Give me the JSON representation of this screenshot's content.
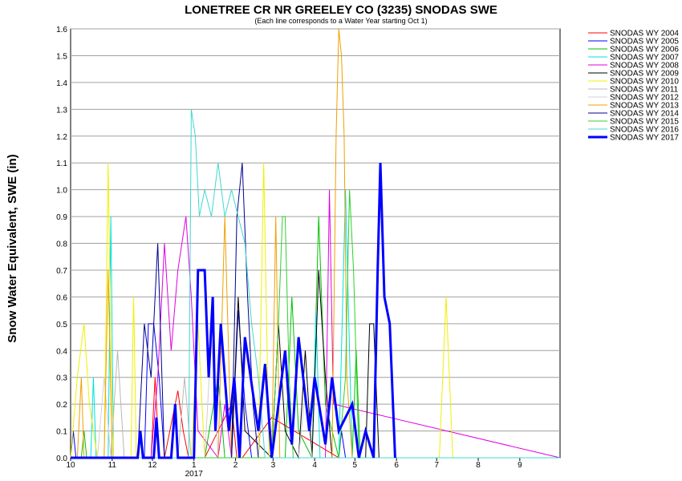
{
  "chart_data": {
    "type": "line",
    "title": "LONETREE CR NR GREELEY CO (3235) SNODAS SWE",
    "subtitle": "(Each line corresponds to a Water Year starting Oct 1)",
    "y_label": "Snow Water Equivalent, SWE (in)",
    "x_year_label": "2017",
    "xlim": [
      0,
      365
    ],
    "xticks": [
      {
        "value": 0,
        "label": "10"
      },
      {
        "value": 31,
        "label": "11"
      },
      {
        "value": 61,
        "label": "12"
      },
      {
        "value": 92,
        "label": "1"
      },
      {
        "value": 123,
        "label": "2"
      },
      {
        "value": 151,
        "label": "3"
      },
      {
        "value": 182,
        "label": "4"
      },
      {
        "value": 212,
        "label": "5"
      },
      {
        "value": 243,
        "label": "6"
      },
      {
        "value": 273,
        "label": "7"
      },
      {
        "value": 304,
        "label": "8"
      },
      {
        "value": 335,
        "label": "9"
      }
    ],
    "ylim": [
      0,
      1.6
    ],
    "yticks": [
      {
        "value": 0,
        "label": "0.0"
      },
      0.1,
      0.2,
      0.3,
      0.4,
      0.5,
      0.6,
      0.7,
      0.8,
      0.9,
      {
        "value": 1,
        "label": "1.0"
      },
      1.1,
      1.2,
      1.3,
      1.4,
      1.5,
      1.6
    ],
    "grid": true,
    "legend": "right",
    "series": [
      {
        "name": "SNODAS WY 2004",
        "color": "#ff0000",
        "width": 1,
        "x": [
          0,
          60,
          63,
          66,
          70,
          80,
          84,
          88,
          100,
          120,
          124,
          128,
          150,
          200,
          365
        ],
        "values": [
          0,
          0,
          0.3,
          0,
          0,
          0.25,
          0.1,
          0,
          0,
          0.2,
          0,
          0,
          0.15,
          0,
          0
        ]
      },
      {
        "name": "SNODAS WY 2005",
        "color": "#0000ff",
        "width": 1,
        "x": [
          0,
          2,
          4,
          6,
          55,
          58,
          62,
          66,
          70,
          120,
          125,
          130,
          135,
          200,
          202,
          205,
          365
        ],
        "values": [
          0,
          0.1,
          0,
          0,
          0,
          0.5,
          0.5,
          0.3,
          0,
          0,
          0.55,
          0.2,
          0,
          0,
          0.1,
          0,
          0
        ]
      },
      {
        "name": "SNODAS WY 2006",
        "color": "#00c000",
        "width": 1,
        "x": [
          0,
          8,
          10,
          12,
          100,
          110,
          115,
          120,
          160,
          165,
          170,
          180,
          185,
          190,
          200,
          210,
          213,
          216,
          365
        ],
        "values": [
          0,
          0,
          0.1,
          0,
          0,
          0.3,
          0,
          0,
          0,
          0.6,
          0.1,
          0,
          0.9,
          0.2,
          0,
          0,
          0.4,
          0,
          0
        ]
      },
      {
        "name": "SNODAS WY 2007",
        "color": "#00e0e0",
        "width": 1,
        "x": [
          0,
          15,
          17,
          19,
          28,
          30,
          32,
          180,
          183,
          186,
          200,
          205,
          210,
          365
        ],
        "values": [
          0,
          0,
          0.3,
          0,
          0,
          0.9,
          0,
          0,
          0.55,
          0,
          0,
          1.0,
          0,
          0
        ]
      },
      {
        "name": "SNODAS WY 2008",
        "color": "#e000e0",
        "width": 1,
        "x": [
          0,
          60,
          65,
          70,
          75,
          80,
          86,
          90,
          95,
          110,
          115,
          120,
          190,
          193,
          196,
          365
        ],
        "values": [
          0,
          0,
          0.3,
          0.8,
          0.4,
          0.7,
          0.9,
          0.6,
          0.1,
          0,
          0.2,
          0,
          0,
          1.0,
          0.2,
          0
        ]
      },
      {
        "name": "SNODAS WY 2009",
        "color": "#000000",
        "width": 1,
        "x": [
          0,
          120,
          125,
          130,
          150,
          155,
          160,
          170,
          175,
          180,
          185,
          190,
          195,
          220,
          223,
          226,
          230,
          365
        ],
        "values": [
          0,
          0,
          0.6,
          0.1,
          0,
          0.5,
          0.1,
          0,
          0.4,
          0,
          0.7,
          0.3,
          0,
          0,
          0.5,
          0.5,
          0,
          0
        ]
      },
      {
        "name": "SNODAS WY 2010",
        "color": "#f0f000",
        "width": 1,
        "x": [
          0,
          5,
          10,
          14,
          20,
          25,
          28,
          30,
          32,
          45,
          47,
          49,
          90,
          95,
          100,
          140,
          144,
          148,
          275,
          280,
          285,
          365
        ],
        "values": [
          0,
          0.3,
          0.5,
          0.2,
          0,
          0,
          1.1,
          0.4,
          0,
          0,
          0.6,
          0,
          0,
          0.5,
          0,
          0,
          1.1,
          0,
          0,
          0.6,
          0,
          0
        ]
      },
      {
        "name": "SNODAS WY 2011",
        "color": "#b8b8b8",
        "width": 1,
        "x": [
          0,
          30,
          35,
          40,
          80,
          85,
          90,
          140,
          145,
          150,
          365
        ],
        "values": [
          0,
          0,
          0.4,
          0,
          0,
          0.3,
          0,
          0,
          0.35,
          0,
          0
        ]
      },
      {
        "name": "SNODAS WY 2012",
        "color": "#d0d0d0",
        "width": 1,
        "x": [
          0,
          20,
          25,
          30,
          100,
          105,
          110,
          170,
          175,
          180,
          365
        ],
        "values": [
          0,
          0,
          0.3,
          0,
          0,
          0.45,
          0,
          0,
          0.25,
          0,
          0
        ]
      },
      {
        "name": "SNODAS WY 2013",
        "color": "#f0a000",
        "width": 1,
        "x": [
          0,
          5,
          8,
          10,
          25,
          28,
          31,
          110,
          115,
          120,
          150,
          153,
          156,
          195,
          198,
          200,
          202,
          204,
          206,
          210,
          365
        ],
        "values": [
          0,
          0,
          0.3,
          0,
          0,
          0.7,
          0,
          0,
          0.9,
          0,
          0,
          0.9,
          0,
          0,
          1.2,
          1.6,
          1.5,
          1.2,
          0.3,
          0,
          0
        ]
      },
      {
        "name": "SNODAS WY 2014",
        "color": "#000090",
        "width": 1,
        "x": [
          0,
          50,
          55,
          60,
          65,
          70,
          120,
          124,
          128,
          132,
          136,
          140,
          365
        ],
        "values": [
          0,
          0,
          0.5,
          0.3,
          0.8,
          0,
          0,
          0.9,
          1.1,
          0.6,
          0.2,
          0,
          0
        ]
      },
      {
        "name": "SNODAS WY 2015",
        "color": "#30d030",
        "width": 1,
        "x": [
          0,
          150,
          155,
          158,
          160,
          163,
          166,
          200,
          205,
          208,
          211,
          215,
          365
        ],
        "values": [
          0,
          0,
          0.5,
          0.9,
          0.9,
          0.3,
          0,
          0,
          0.3,
          1.0,
          0.7,
          0,
          0
        ]
      },
      {
        "name": "SNODAS WY 2016",
        "color": "#40d8d0",
        "width": 1,
        "x": [
          0,
          88,
          90,
          93,
          96,
          100,
          105,
          110,
          115,
          120,
          125,
          130,
          135,
          140,
          145,
          365
        ],
        "values": [
          0,
          0,
          1.3,
          1.2,
          0.9,
          1.0,
          0.9,
          1.1,
          0.9,
          1.0,
          0.9,
          0.8,
          0.5,
          0.3,
          0,
          0
        ]
      },
      {
        "name": "SNODAS WY 2017",
        "color": "#0000ff",
        "width": 3,
        "x": [
          0,
          50,
          52,
          54,
          62,
          64,
          66,
          75,
          78,
          80,
          92,
          95,
          100,
          103,
          106,
          108,
          112,
          118,
          122,
          126,
          130,
          140,
          145,
          150,
          160,
          165,
          170,
          178,
          182,
          190,
          195,
          200,
          210,
          215,
          220,
          226,
          229,
          231,
          234,
          238,
          242
        ],
        "values": [
          0,
          0,
          0.1,
          0,
          0,
          0.15,
          0,
          0,
          0.2,
          0,
          0,
          0.7,
          0.7,
          0.3,
          0.6,
          0.1,
          0.5,
          0.1,
          0.3,
          0,
          0.45,
          0.1,
          0.35,
          0,
          0.4,
          0.05,
          0.45,
          0.1,
          0.3,
          0.05,
          0.3,
          0.1,
          0.2,
          0,
          0.1,
          0,
          0.7,
          1.1,
          0.6,
          0.5,
          0
        ]
      }
    ]
  }
}
